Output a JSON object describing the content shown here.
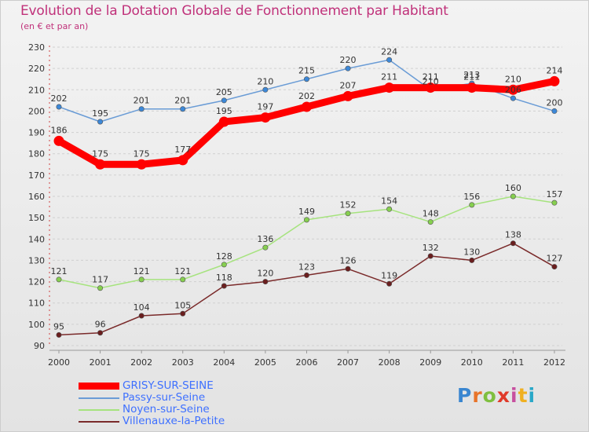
{
  "title": "Evolution de la Dotation Globale de Fonctionnement par Habitant",
  "subtitle": "(en € et par an)",
  "logo": {
    "letters": [
      "P",
      "r",
      "o",
      "x",
      "i",
      "t",
      "i"
    ],
    "colors": [
      "#3a86d0",
      "#e8742a",
      "#7fbf3f",
      "#e03a2a",
      "#c74f9f",
      "#f0b020",
      "#2aa8c8"
    ]
  },
  "chart_data": {
    "type": "line",
    "title": "Evolution de la Dotation Globale de Fonctionnement par Habitant",
    "ylabel": "(en € et par an)",
    "xlabel": "",
    "ylim": [
      90,
      230
    ],
    "yticks": [
      90,
      100,
      110,
      120,
      130,
      140,
      150,
      160,
      170,
      180,
      190,
      200,
      210,
      220,
      230
    ],
    "x": [
      "2000",
      "2001",
      "2002",
      "2003",
      "2004",
      "2005",
      "2006",
      "2007",
      "2008",
      "2009",
      "2010",
      "2011",
      "2012"
    ],
    "grid": "horizontal",
    "legend_position": "bottom-left",
    "series": [
      {
        "name": "Villenauxe-la-Petite",
        "color": "#7a2a2a",
        "marker": "#6a1e1e",
        "style": "thin",
        "values": [
          95,
          96,
          104,
          105,
          118,
          120,
          123,
          126,
          119,
          132,
          130,
          138,
          127
        ]
      },
      {
        "name": "Noyen-sur-Seine",
        "color": "#a6e37e",
        "marker": "#86cf4f",
        "style": "thin",
        "values": [
          121,
          117,
          121,
          121,
          128,
          136,
          149,
          152,
          154,
          148,
          156,
          160,
          157
        ]
      },
      {
        "name": "Passy-sur-Seine",
        "color": "#6a9cd6",
        "marker": "#3c88d8",
        "style": "thin",
        "values": [
          202,
          195,
          201,
          201,
          205,
          210,
          215,
          220,
          224,
          210,
          213,
          206,
          200
        ]
      },
      {
        "name": "GRISY-SUR-SEINE",
        "color": "#ff0000",
        "marker": "#ff0000",
        "style": "thick",
        "values": [
          186,
          175,
          175,
          177,
          195,
          197,
          202,
          207,
          211,
          211,
          211,
          210,
          214
        ]
      }
    ]
  }
}
